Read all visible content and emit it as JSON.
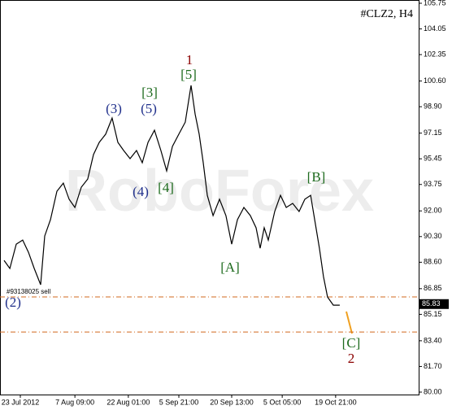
{
  "chart_data": {
    "type": "line",
    "title": "#CLZ2, H4",
    "watermark": "RoboForex",
    "order_label": "#93138025 sell",
    "last_price": 85.83,
    "levels": [
      86.3,
      83.98
    ],
    "x": [
      7,
      17,
      28,
      39,
      49,
      59,
      70,
      77,
      87,
      98,
      109,
      119,
      129,
      140,
      151,
      161,
      171,
      182,
      193,
      203,
      213,
      224,
      235,
      245,
      255,
      266,
      277,
      287,
      297,
      308,
      319,
      329,
      336,
      343,
      350,
      357,
      367,
      378,
      389,
      399,
      409,
      420,
      431,
      441,
      448,
      455,
      462,
      473,
      483,
      493,
      504,
      515,
      525,
      535,
      543,
      550,
      557,
      564,
      574,
      585
    ],
    "series": [
      {
        "name": "#CLZ2",
        "color": "#000000",
        "values": [
          88.72,
          88.19,
          89.8,
          90.07,
          89.26,
          88.19,
          87.11,
          90.34,
          91.42,
          93.3,
          93.84,
          92.77,
          92.23,
          93.57,
          94.11,
          95.73,
          96.54,
          97.08,
          98.15,
          96.54,
          96,
          95.46,
          96,
          95.19,
          96.54,
          97.34,
          96,
          94.65,
          96.27,
          97.08,
          97.88,
          100.31,
          98.42,
          97.08,
          95.19,
          93.03,
          91.69,
          92.77,
          91.69,
          89.8,
          91.42,
          92.23,
          91.69,
          90.88,
          89.53,
          90.88,
          90.07,
          91.96,
          93.03,
          92.23,
          92.5,
          91.96,
          92.77,
          93.03,
          91.15,
          89.53,
          87.65,
          86.3,
          85.76,
          85.76
        ]
      }
    ],
    "xlim": [
      0,
      721
    ],
    "xticks": [
      {
        "value": 35,
        "label": "23 Jul 2012"
      },
      {
        "value": 129,
        "label": "7 Aug 09:00"
      },
      {
        "value": 221,
        "label": "22 Aug 01:00"
      },
      {
        "value": 308,
        "label": "5 Sep 21:00"
      },
      {
        "value": 399,
        "label": "20 Sep 13:00"
      },
      {
        "value": 486,
        "label": "5 Oct 05:00"
      },
      {
        "value": 578,
        "label": "19 Oct 21:00"
      }
    ],
    "ylim": [
      80,
      105.75
    ],
    "yticks": [
      105.75,
      104.05,
      102.35,
      {
        "value": 100.6,
        "label": "100.60"
      },
      {
        "value": 98.9,
        "label": "98.90"
      },
      97.15,
      95.45,
      93.75,
      {
        "value": 92,
        "label": "92.00"
      },
      {
        "value": 90.3,
        "label": "90.30"
      },
      {
        "value": 88.6,
        "label": "88.60"
      },
      86.85,
      85.15,
      {
        "value": 83.4,
        "label": "83.40"
      },
      {
        "value": 81.7,
        "label": "81.70"
      },
      {
        "value": 80,
        "label": "80.00"
      }
    ],
    "annotations": [
      {
        "text": "1",
        "color": "#8b0000"
      },
      {
        "text": "[5]",
        "color": "#1e6b1e"
      },
      {
        "text": "[3]",
        "color": "#1e6b1e"
      },
      {
        "text": "(3)",
        "color": "#1f2f8b"
      },
      {
        "text": "(5)",
        "color": "#1f2f8b"
      },
      {
        "text": "(4)",
        "color": "#1f2f8b"
      },
      {
        "text": "[4]",
        "color": "#1e6b1e"
      },
      {
        "text": "[B]",
        "color": "#1e6b1e"
      },
      {
        "text": "[A]",
        "color": "#1e6b1e"
      },
      {
        "text": "(2)",
        "color": "#1f2f8b"
      },
      {
        "text": "[C]",
        "color": "#1e6b1e"
      },
      {
        "text": "2",
        "color": "#8b0000"
      }
    ]
  }
}
